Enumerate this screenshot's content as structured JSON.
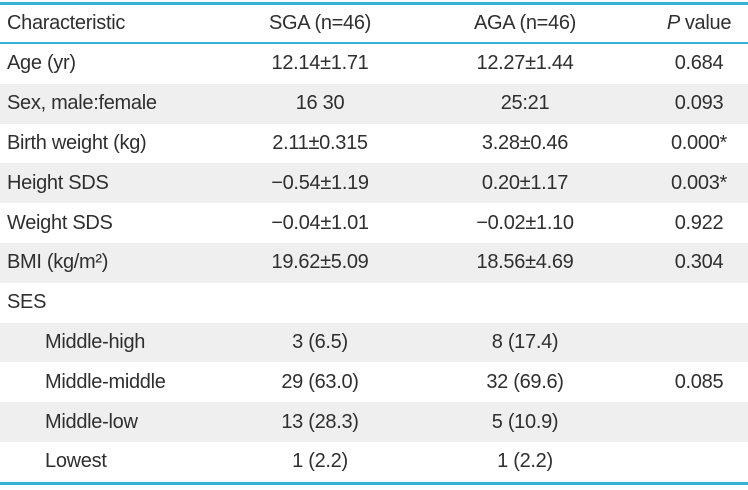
{
  "table": {
    "columns": {
      "characteristic": "Characteristic",
      "sga": "SGA (n=46)",
      "aga": "AGA (n=46)",
      "p_italic": "P",
      "p_rest": "value"
    },
    "rows": [
      {
        "label": "Age (yr)",
        "sga": "12.14±1.71",
        "aga": "12.27±1.44",
        "p": "0.684"
      },
      {
        "label": "Sex, male:female",
        "sga": "16 30",
        "aga": "25:21",
        "p": "0.093"
      },
      {
        "label": "Birth weight (kg)",
        "sga": "2.11±0.315",
        "aga": "3.28±0.46",
        "p": "0.000*"
      },
      {
        "label": "Height SDS",
        "sga": "−0.54±1.19",
        "aga": "0.20±1.17",
        "p": "0.003*"
      },
      {
        "label": "Weight SDS",
        "sga": "−0.04±1.01",
        "aga": "−0.02±1.10",
        "p": "0.922"
      },
      {
        "label": "BMI (kg/m²)",
        "sga": "19.62±5.09",
        "aga": "18.56±4.69",
        "p": "0.304"
      },
      {
        "label": "SES",
        "sga": "",
        "aga": "",
        "p": ""
      },
      {
        "label": "Middle-high",
        "sga": "3 (6.5)",
        "aga": "8 (17.4)",
        "p": ""
      },
      {
        "label": "Middle-middle",
        "sga": "29 (63.0)",
        "aga": "32 (69.6)",
        "p": "0.085"
      },
      {
        "label": "Middle-low",
        "sga": "13 (28.3)",
        "aga": "5 (10.9)",
        "p": ""
      },
      {
        "label": "Lowest",
        "sga": "1 (2.2)",
        "aga": "1 (2.2)",
        "p": ""
      }
    ],
    "accent_color": "#35b1d4",
    "shaded_row_color": "#efefef"
  }
}
